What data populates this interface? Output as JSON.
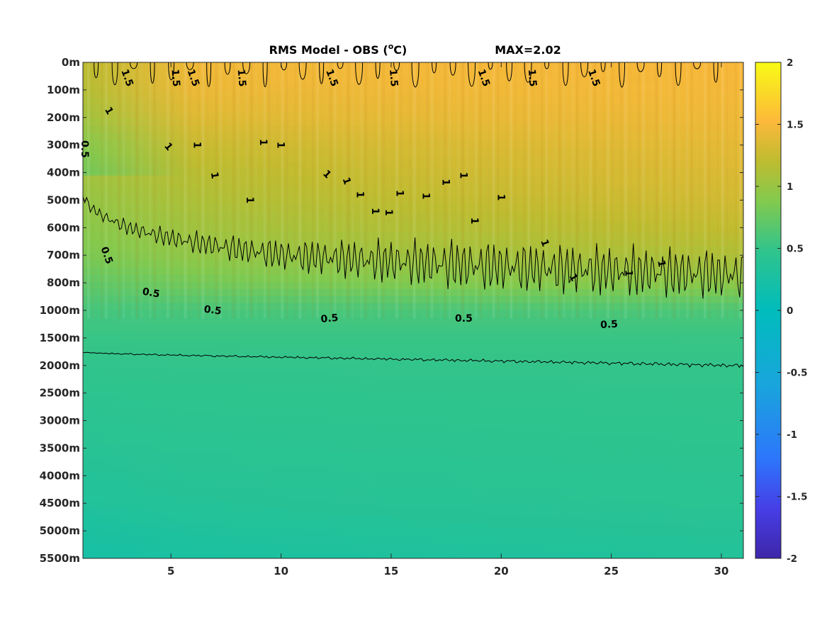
{
  "chart_data": {
    "type": "heatmap",
    "title": "RMS Model - OBS (°C)",
    "title_main": "RMS Model - OBS (",
    "title_sup": "o",
    "title_unit": "C)",
    "max_label": "MAX=2.02",
    "x": {
      "range": [
        1,
        31
      ],
      "ticks": [
        5,
        10,
        15,
        20,
        25,
        30
      ],
      "tick_labels": [
        "5",
        "10",
        "15",
        "20",
        "25",
        "30"
      ]
    },
    "y": {
      "direction": "downward",
      "tick_labels": [
        "0m",
        "100m",
        "200m",
        "300m",
        "400m",
        "500m",
        "600m",
        "700m",
        "800m",
        "1000m",
        "1500m",
        "2000m",
        "2500m",
        "3000m",
        "3500m",
        "4000m",
        "4500m",
        "5000m",
        "5500m"
      ]
    },
    "colorbar": {
      "colormap": "parula",
      "range": [
        -2,
        2
      ],
      "ticks": [
        2,
        1.5,
        1,
        0.5,
        0,
        -0.5,
        -1,
        -1.5,
        -2
      ],
      "tick_labels": [
        "2",
        "1.5",
        "1",
        "0.5",
        "0",
        "-0.5",
        "-1",
        "-1.5",
        "-2"
      ],
      "position": "right"
    },
    "field_profile": {
      "depth_index": [
        0,
        1,
        2,
        3,
        4,
        5,
        6,
        7,
        8,
        9,
        10,
        11,
        12,
        14,
        16,
        18
      ],
      "value_left": [
        1.45,
        1.4,
        1.3,
        1.15,
        1.05,
        0.98,
        0.92,
        0.85,
        0.72,
        0.58,
        0.52,
        0.48,
        0.45,
        0.4,
        0.33,
        0.22
      ],
      "value_right": [
        1.5,
        1.48,
        1.45,
        1.4,
        1.35,
        1.3,
        1.22,
        1.12,
        0.95,
        0.62,
        0.52,
        0.5,
        0.48,
        0.45,
        0.42,
        0.34
      ]
    },
    "contours": [
      {
        "level": 0.5,
        "label": "0.5"
      },
      {
        "level": 1,
        "label": "1"
      },
      {
        "level": 1.5,
        "label": "1.5"
      }
    ],
    "contour_labels": [
      {
        "text": "0.5",
        "x": 1.1,
        "depth_index": 3.15,
        "angle": 90
      },
      {
        "text": "0.5",
        "x": 2.1,
        "depth_index": 7.0,
        "angle": 70
      },
      {
        "text": "0.5",
        "x": 4.1,
        "depth_index": 8.35,
        "angle": 10
      },
      {
        "text": "0.5",
        "x": 6.9,
        "depth_index": 8.98,
        "angle": 8
      },
      {
        "text": "0.5",
        "x": 12.2,
        "depth_index": 9.28,
        "angle": -5
      },
      {
        "text": "0.5",
        "x": 18.3,
        "depth_index": 9.28,
        "angle": 0
      },
      {
        "text": "0.5",
        "x": 24.9,
        "depth_index": 9.5,
        "angle": -3
      },
      {
        "text": "1",
        "x": 2.2,
        "depth_index": 1.75,
        "angle": 60
      },
      {
        "text": "1",
        "x": 4.9,
        "depth_index": 3.05,
        "angle": 50
      },
      {
        "text": "1",
        "x": 6.2,
        "depth_index": 3.0,
        "angle": 90
      },
      {
        "text": "1",
        "x": 7.0,
        "depth_index": 4.1,
        "angle": 80
      },
      {
        "text": "1",
        "x": 8.6,
        "depth_index": 5.0,
        "angle": 90
      },
      {
        "text": "1",
        "x": 9.2,
        "depth_index": 2.9,
        "angle": 90
      },
      {
        "text": "1",
        "x": 10.0,
        "depth_index": 3.0,
        "angle": 90
      },
      {
        "text": "1",
        "x": 12.1,
        "depth_index": 4.05,
        "angle": 45
      },
      {
        "text": "1",
        "x": 13.0,
        "depth_index": 4.3,
        "angle": 70
      },
      {
        "text": "1",
        "x": 13.6,
        "depth_index": 4.8,
        "angle": 90
      },
      {
        "text": "1",
        "x": 14.3,
        "depth_index": 5.4,
        "angle": 90
      },
      {
        "text": "1",
        "x": 14.9,
        "depth_index": 5.45,
        "angle": 90
      },
      {
        "text": "1",
        "x": 15.4,
        "depth_index": 4.75,
        "angle": 90
      },
      {
        "text": "1",
        "x": 16.6,
        "depth_index": 4.85,
        "angle": 90
      },
      {
        "text": "1",
        "x": 17.5,
        "depth_index": 4.35,
        "angle": 90
      },
      {
        "text": "1",
        "x": 18.3,
        "depth_index": 4.1,
        "angle": 90
      },
      {
        "text": "1",
        "x": 18.8,
        "depth_index": 5.75,
        "angle": 90
      },
      {
        "text": "1",
        "x": 20.0,
        "depth_index": 4.9,
        "angle": 90
      },
      {
        "text": "1",
        "x": 22.0,
        "depth_index": 6.55,
        "angle": 70
      },
      {
        "text": "1",
        "x": 23.3,
        "depth_index": 7.8,
        "angle": 60
      },
      {
        "text": "1",
        "x": 25.8,
        "depth_index": 7.65,
        "angle": 90
      },
      {
        "text": "1",
        "x": 27.3,
        "depth_index": 7.3,
        "angle": 80
      }
    ]
  }
}
